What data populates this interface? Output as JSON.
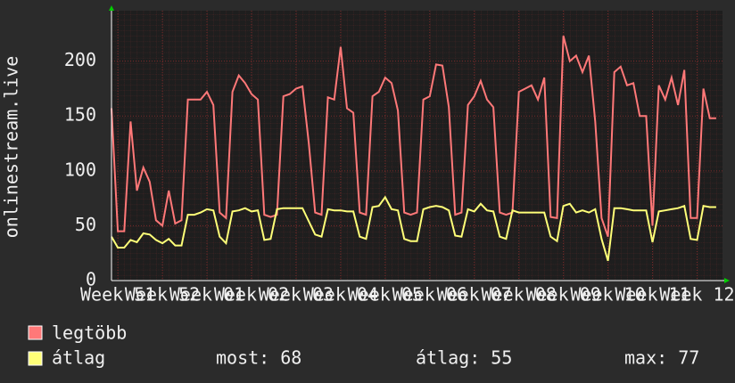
{
  "chart_data": {
    "type": "line",
    "y_label": "onlinestream.live",
    "x": [
      -2,
      -1,
      0,
      1,
      2,
      3,
      4,
      5,
      6,
      7,
      8,
      9,
      10,
      11,
      12,
      13,
      14,
      15,
      16,
      17,
      18,
      19,
      20,
      21,
      22,
      23,
      24,
      25,
      26,
      27,
      28,
      29,
      30,
      31,
      32,
      33,
      34,
      35,
      36,
      37,
      38,
      39,
      40,
      41,
      42,
      43,
      44,
      45,
      46,
      47,
      48,
      49,
      50,
      51,
      52,
      53,
      54,
      55,
      56,
      57,
      58,
      59,
      60,
      61,
      62,
      63,
      64,
      65,
      66,
      67,
      68,
      69,
      70,
      71,
      72,
      73,
      74,
      75,
      76,
      77,
      78,
      79,
      80,
      81,
      82,
      83,
      84,
      85,
      86,
      87,
      88,
      89,
      90,
      91,
      92,
      93
    ],
    "series": [
      {
        "name": "legtöbb",
        "color": "#ff7878",
        "values": [
          157,
          45,
          45,
          145,
          82,
          103,
          90,
          55,
          50,
          82,
          52,
          55,
          165,
          165,
          165,
          172,
          160,
          62,
          57,
          172,
          187,
          180,
          170,
          165,
          60,
          58,
          60,
          168,
          170,
          175,
          177,
          125,
          62,
          60,
          167,
          165,
          213,
          157,
          153,
          62,
          60,
          168,
          172,
          185,
          180,
          155,
          62,
          60,
          62,
          165,
          168,
          197,
          196,
          158,
          60,
          62,
          160,
          168,
          182,
          165,
          158,
          62,
          60,
          62,
          172,
          175,
          178,
          165,
          185,
          58,
          57,
          223,
          200,
          205,
          190,
          205,
          145,
          57,
          40,
          190,
          195,
          178,
          180,
          150,
          150,
          50,
          178,
          165,
          185,
          160,
          192,
          57,
          57,
          175,
          148,
          148
        ]
      },
      {
        "name": "átlag",
        "color": "#ffff78",
        "values": [
          40,
          30,
          30,
          37,
          35,
          43,
          42,
          37,
          34,
          38,
          32,
          32,
          60,
          60,
          62,
          65,
          64,
          40,
          34,
          63,
          64,
          66,
          63,
          64,
          37,
          38,
          65,
          66,
          66,
          66,
          66,
          54,
          42,
          40,
          65,
          64,
          64,
          63,
          63,
          40,
          38,
          67,
          68,
          76,
          65,
          64,
          38,
          36,
          36,
          65,
          67,
          68,
          67,
          64,
          41,
          40,
          65,
          63,
          70,
          64,
          63,
          40,
          38,
          64,
          62,
          62,
          62,
          62,
          62,
          40,
          36,
          68,
          70,
          62,
          64,
          62,
          65,
          38,
          18,
          66,
          66,
          65,
          64,
          64,
          64,
          35,
          63,
          64,
          65,
          66,
          68,
          38,
          37,
          68,
          67,
          67
        ]
      }
    ],
    "legend_stats": [
      "most: 68",
      "átlag: 55",
      "max: 77"
    ],
    "xlim": [
      -2,
      94
    ],
    "xticks": [
      {
        "value": -1,
        "label": "Week 51"
      },
      {
        "value": 6,
        "label": "Week 52"
      },
      {
        "value": 13,
        "label": "Week 01"
      },
      {
        "value": 20,
        "label": "Week 02"
      },
      {
        "value": 27,
        "label": "Week 03"
      },
      {
        "value": 34,
        "label": "Week 04"
      },
      {
        "value": 41,
        "label": "Week 05"
      },
      {
        "value": 48,
        "label": "Week 06"
      },
      {
        "value": 55,
        "label": "Week 07"
      },
      {
        "value": 62,
        "label": "Week 08"
      },
      {
        "value": 69,
        "label": "Week 09"
      },
      {
        "value": 76,
        "label": "Week 10"
      },
      {
        "value": 83,
        "label": "Week 11"
      },
      {
        "value": 90,
        "label": "Week 12"
      }
    ],
    "ylim": [
      0,
      246
    ],
    "yticks": [
      0,
      50,
      100,
      150,
      200
    ],
    "grid": true
  }
}
